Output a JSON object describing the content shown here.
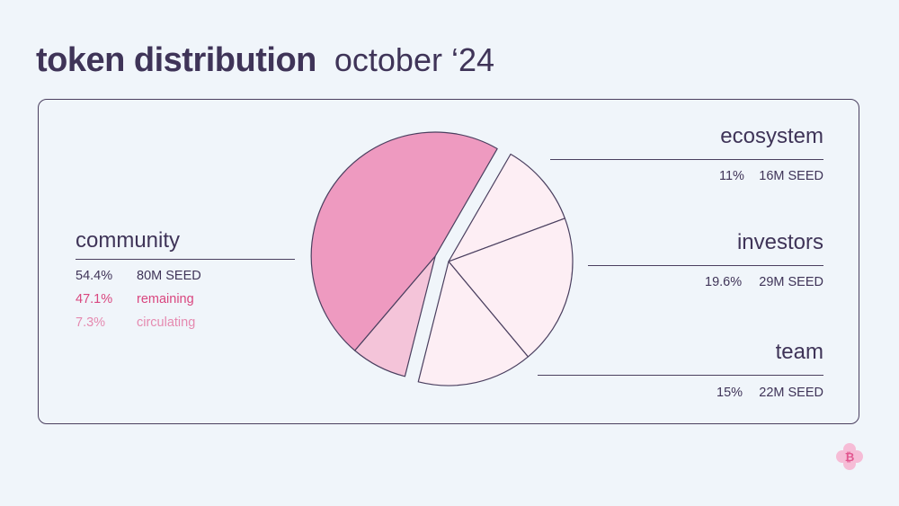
{
  "title": {
    "main": "token distribution",
    "sub": "october ‘24"
  },
  "colors": {
    "background": "#f0f5fa",
    "text": "#3f3458",
    "community": "#ee9ac0",
    "circulating": "#f4c4d9",
    "other_slices": "#fdeef4",
    "remaining_text": "#d9467f",
    "circulating_text": "#e58ab0",
    "outline": "#4a3f5f"
  },
  "chart_data": {
    "type": "pie",
    "slices": [
      {
        "name": "community",
        "percent": 54.4,
        "seed": "80M SEED",
        "exploded": true
      },
      {
        "name": "ecosystem",
        "percent": 11,
        "seed": "16M SEED"
      },
      {
        "name": "investors",
        "percent": 19.6,
        "seed": "29M SEED"
      },
      {
        "name": "team",
        "percent": 15,
        "seed": "22M SEED"
      }
    ],
    "community_breakdown": [
      {
        "name": "remaining",
        "percent": 47.1
      },
      {
        "name": "circulating",
        "percent": 7.3
      }
    ]
  },
  "labels": {
    "community": {
      "name": "community",
      "pct": "54.4%",
      "seed": "80M SEED",
      "remaining_pct": "47.1%",
      "remaining_label": "remaining",
      "circulating_pct": "7.3%",
      "circulating_label": "circulating"
    },
    "ecosystem": {
      "name": "ecosystem",
      "pct": "11%",
      "seed": "16M SEED"
    },
    "investors": {
      "name": "investors",
      "pct": "19.6%",
      "seed": "29M SEED"
    },
    "team": {
      "name": "team",
      "pct": "15%",
      "seed": "22M SEED"
    }
  },
  "logo_icon": "bitcoin-flower-icon"
}
